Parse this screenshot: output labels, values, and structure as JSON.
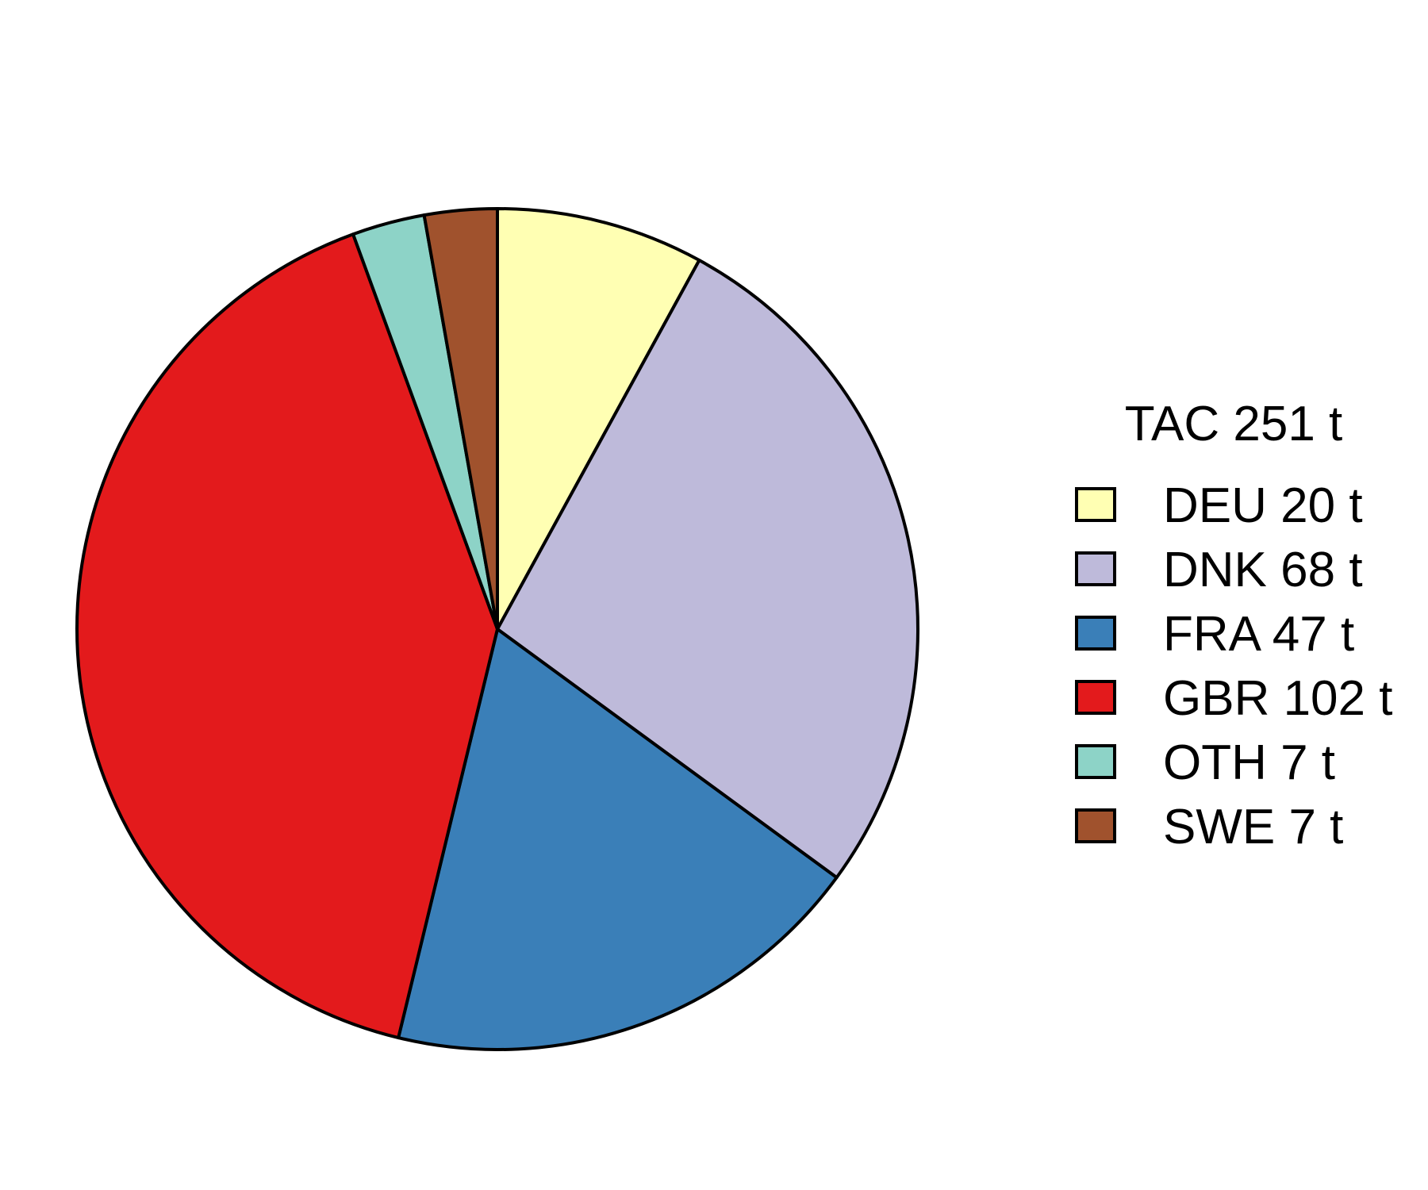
{
  "chart_data": {
    "type": "pie",
    "title": "",
    "legend": {
      "title": "TAC 251 t",
      "placement": "right"
    },
    "slices": [
      {
        "category": "DEU",
        "value": 20,
        "label": "DEU 20 t",
        "color": "#FFFFB3"
      },
      {
        "category": "DNK",
        "value": 68,
        "label": "DNK 68 t",
        "color": "#BEBADA"
      },
      {
        "category": "FRA",
        "value": 47,
        "label": "FRA 47 t",
        "color": "#3A7FB8"
      },
      {
        "category": "GBR",
        "value": 102,
        "label": "GBR 102 t",
        "color": "#E31A1C"
      },
      {
        "category": "OTH",
        "value": 7,
        "label": "OTH 7 t",
        "color": "#8DD3C7"
      },
      {
        "category": "SWE",
        "value": 7,
        "label": "SWE 7 t",
        "color": "#A0522D"
      }
    ]
  }
}
